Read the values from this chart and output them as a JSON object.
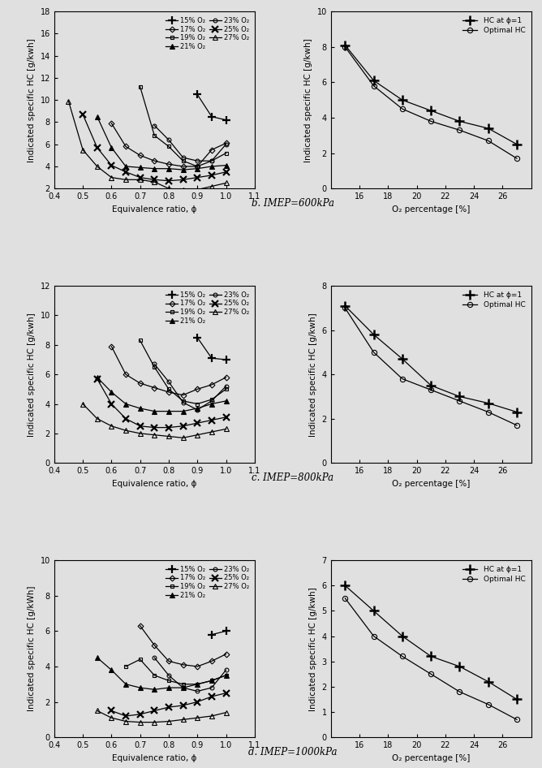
{
  "panels": [
    {
      "label": "b. IMEP=600kPa",
      "left": {
        "xlim": [
          0.4,
          1.1
        ],
        "ylim": [
          2,
          18
        ],
        "yticks": [
          2,
          4,
          6,
          8,
          10,
          12,
          14,
          16,
          18
        ],
        "xticks": [
          0.4,
          0.5,
          0.6,
          0.7,
          0.8,
          0.9,
          1.0,
          1.1
        ],
        "xlabel": "Equivalence ratio, ϕ",
        "ylabel": "Indicated specific HC [g/kwh]",
        "series": [
          {
            "label": "15% O₂",
            "x": [
              0.9,
              0.95,
              1.0
            ],
            "y": [
              10.5,
              8.5,
              8.2
            ]
          },
          {
            "label": "17% O₂",
            "x": [
              0.6,
              0.65,
              0.7,
              0.75,
              0.8,
              0.85,
              0.9,
              0.95,
              1.0
            ],
            "y": [
              7.9,
              5.8,
              5.0,
              4.5,
              4.2,
              4.0,
              4.0,
              5.5,
              6.1
            ]
          },
          {
            "label": "19% O₂",
            "x": [
              0.7,
              0.75,
              0.8,
              0.85,
              0.9,
              0.95,
              1.0
            ],
            "y": [
              11.2,
              6.8,
              5.8,
              4.5,
              4.0,
              4.5,
              5.2
            ]
          },
          {
            "label": "21% O₂",
            "x": [
              0.55,
              0.6,
              0.65,
              0.7,
              0.75,
              0.8,
              0.85,
              0.9,
              0.95,
              1.0
            ],
            "y": [
              8.5,
              5.7,
              4.0,
              3.9,
              3.8,
              3.8,
              3.7,
              3.8,
              4.0,
              4.1
            ]
          },
          {
            "label": "23% O₂",
            "x": [
              0.75,
              0.8,
              0.85,
              0.9,
              0.95,
              1.0
            ],
            "y": [
              7.7,
              6.4,
              4.8,
              4.5,
              4.5,
              6.0
            ]
          },
          {
            "label": "25% O₂",
            "x": [
              0.5,
              0.55,
              0.6,
              0.65,
              0.7,
              0.75,
              0.8,
              0.85,
              0.9,
              0.95,
              1.0
            ],
            "y": [
              8.7,
              5.7,
              4.1,
              3.5,
              3.0,
              2.8,
              2.7,
              2.8,
              3.0,
              3.2,
              3.5
            ]
          },
          {
            "label": "27% O₂",
            "x": [
              0.45,
              0.5,
              0.55,
              0.6,
              0.65,
              0.7,
              0.75,
              0.8,
              0.85,
              0.9,
              0.95,
              1.0
            ],
            "y": [
              9.9,
              5.5,
              4.0,
              3.0,
              2.8,
              2.8,
              2.6,
              2.0,
              1.9,
              1.9,
              2.2,
              2.5
            ]
          }
        ]
      },
      "right": {
        "xlim": [
          14,
          28
        ],
        "ylim": [
          0,
          10
        ],
        "yticks": [
          0,
          2,
          4,
          6,
          8,
          10
        ],
        "xticks": [
          16,
          18,
          20,
          22,
          24,
          26
        ],
        "xlabel": "O₂ percentage [%]",
        "ylabel": "Indicated specific HC [g/kwh]",
        "series": [
          {
            "label": "HC at ϕ=1",
            "x": [
              15,
              17,
              19,
              21,
              23,
              25,
              27
            ],
            "y": [
              8.1,
              6.1,
              5.0,
              4.4,
              3.8,
              3.4,
              2.5
            ]
          },
          {
            "label": "Optimal HC",
            "x": [
              15,
              17,
              19,
              21,
              23,
              25,
              27
            ],
            "y": [
              8.0,
              5.8,
              4.5,
              3.8,
              3.3,
              2.7,
              1.7
            ]
          }
        ]
      }
    },
    {
      "label": "c. IMEP=800kPa",
      "left": {
        "xlim": [
          0.4,
          1.1
        ],
        "ylim": [
          0,
          12
        ],
        "yticks": [
          0,
          2,
          4,
          6,
          8,
          10,
          12
        ],
        "xticks": [
          0.4,
          0.5,
          0.6,
          0.7,
          0.8,
          0.9,
          1.0,
          1.1
        ],
        "xlabel": "Equivalence ratio, ϕ",
        "ylabel": "Indicated specific HC [g/kwh]",
        "series": [
          {
            "label": "15% O₂",
            "x": [
              0.9,
              0.95,
              1.0
            ],
            "y": [
              8.5,
              7.1,
              7.0
            ]
          },
          {
            "label": "17% O₂",
            "x": [
              0.6,
              0.65,
              0.7,
              0.75,
              0.8,
              0.85,
              0.9,
              0.95,
              1.0
            ],
            "y": [
              7.9,
              6.0,
              5.4,
              5.1,
              4.8,
              4.6,
              5.0,
              5.3,
              5.8
            ]
          },
          {
            "label": "19% O₂",
            "x": [
              0.7,
              0.75,
              0.8,
              0.85,
              0.9,
              0.95,
              1.0
            ],
            "y": [
              8.3,
              6.5,
              5.0,
              4.2,
              4.0,
              4.3,
              5.0
            ]
          },
          {
            "label": "21% O₂",
            "x": [
              0.55,
              0.6,
              0.65,
              0.7,
              0.75,
              0.8,
              0.85,
              0.9,
              0.95,
              1.0
            ],
            "y": [
              5.8,
              4.8,
              4.0,
              3.7,
              3.5,
              3.5,
              3.5,
              3.7,
              4.0,
              4.2
            ]
          },
          {
            "label": "23% O₂",
            "x": [
              0.75,
              0.8,
              0.85,
              0.9,
              0.95,
              1.0
            ],
            "y": [
              6.7,
              5.5,
              4.1,
              3.6,
              4.2,
              5.2
            ]
          },
          {
            "label": "25% O₂",
            "x": [
              0.55,
              0.6,
              0.65,
              0.7,
              0.75,
              0.8,
              0.85,
              0.9,
              0.95,
              1.0
            ],
            "y": [
              5.7,
              4.0,
              3.0,
              2.5,
              2.4,
              2.4,
              2.5,
              2.7,
              2.9,
              3.1
            ]
          },
          {
            "label": "27% O₂",
            "x": [
              0.5,
              0.55,
              0.6,
              0.65,
              0.7,
              0.75,
              0.8,
              0.85,
              0.9,
              0.95,
              1.0
            ],
            "y": [
              4.0,
              3.0,
              2.5,
              2.2,
              2.0,
              1.9,
              1.8,
              1.7,
              1.9,
              2.1,
              2.3
            ]
          }
        ]
      },
      "right": {
        "xlim": [
          14,
          28
        ],
        "ylim": [
          0,
          8
        ],
        "yticks": [
          0,
          2,
          4,
          6,
          8
        ],
        "xticks": [
          16,
          18,
          20,
          22,
          24,
          26
        ],
        "xlabel": "O₂ percentage [%]",
        "ylabel": "Indicated specific HC [g/kwh]",
        "series": [
          {
            "label": "HC at ϕ=1",
            "x": [
              15,
              17,
              19,
              21,
              23,
              25,
              27
            ],
            "y": [
              7.1,
              5.8,
              4.7,
              3.5,
              3.0,
              2.7,
              2.3
            ]
          },
          {
            "label": "Optimal HC",
            "x": [
              15,
              17,
              19,
              21,
              23,
              25,
              27
            ],
            "y": [
              7.0,
              5.0,
              3.8,
              3.3,
              2.8,
              2.3,
              1.7
            ]
          }
        ]
      }
    },
    {
      "label": "d. IMEP=1000kPa",
      "left": {
        "xlim": [
          0.4,
          1.1
        ],
        "ylim": [
          0,
          10
        ],
        "yticks": [
          0,
          2,
          4,
          6,
          8,
          10
        ],
        "xticks": [
          0.4,
          0.5,
          0.6,
          0.7,
          0.8,
          0.9,
          1.0,
          1.1
        ],
        "xlabel": "Equivalence ratio, ϕ",
        "ylabel": "Indicated specific HC [g/kWh]",
        "series": [
          {
            "label": "15% O₂",
            "x": [
              0.95,
              1.0
            ],
            "y": [
              5.8,
              6.0
            ]
          },
          {
            "label": "17% O₂",
            "x": [
              0.7,
              0.75,
              0.8,
              0.85,
              0.9,
              0.95,
              1.0
            ],
            "y": [
              6.3,
              5.2,
              4.3,
              4.1,
              4.0,
              4.3,
              4.7
            ]
          },
          {
            "label": "19% O₂",
            "x": [
              0.65,
              0.7,
              0.75,
              0.8,
              0.85,
              0.9,
              0.95,
              1.0
            ],
            "y": [
              4.0,
              4.4,
              3.5,
              3.2,
              3.0,
              3.0,
              3.2,
              3.5
            ]
          },
          {
            "label": "21% O₂",
            "x": [
              0.55,
              0.6,
              0.65,
              0.7,
              0.75,
              0.8,
              0.85,
              0.9,
              0.95,
              1.0
            ],
            "y": [
              4.5,
              3.8,
              3.0,
              2.8,
              2.7,
              2.8,
              2.8,
              3.0,
              3.2,
              3.5
            ]
          },
          {
            "label": "23% O₂",
            "x": [
              0.75,
              0.8,
              0.85,
              0.9,
              0.95,
              1.0
            ],
            "y": [
              4.5,
              3.5,
              2.8,
              2.6,
              2.8,
              3.8
            ]
          },
          {
            "label": "25% O₂",
            "x": [
              0.6,
              0.65,
              0.7,
              0.75,
              0.8,
              0.85,
              0.9,
              0.95,
              1.0
            ],
            "y": [
              1.5,
              1.2,
              1.3,
              1.5,
              1.7,
              1.8,
              2.0,
              2.3,
              2.5
            ]
          },
          {
            "label": "27% O₂",
            "x": [
              0.55,
              0.6,
              0.65,
              0.7,
              0.75,
              0.8,
              0.85,
              0.9,
              0.95,
              1.0
            ],
            "y": [
              1.5,
              1.1,
              0.9,
              0.85,
              0.85,
              0.9,
              1.0,
              1.1,
              1.2,
              1.4
            ]
          }
        ]
      },
      "right": {
        "xlim": [
          14,
          28
        ],
        "ylim": [
          0,
          7
        ],
        "yticks": [
          0,
          1,
          2,
          3,
          4,
          5,
          6,
          7
        ],
        "xticks": [
          16,
          18,
          20,
          22,
          24,
          26
        ],
        "xlabel": "O₂ percentage [%]",
        "ylabel": "Indicated specific HC [g/kwh]",
        "series": [
          {
            "label": "HC at ϕ=1",
            "x": [
              15,
              17,
              19,
              21,
              23,
              25,
              27
            ],
            "y": [
              6.0,
              5.0,
              4.0,
              3.2,
              2.8,
              2.2,
              1.5
            ]
          },
          {
            "label": "Optimal HC",
            "x": [
              15,
              17,
              19,
              21,
              23,
              25,
              27
            ],
            "y": [
              5.5,
              4.0,
              3.2,
              2.5,
              1.8,
              1.3,
              0.7
            ]
          }
        ]
      }
    }
  ],
  "line_width": 0.9,
  "label_font_size": 7.5,
  "tick_font_size": 7,
  "bg_color": "#e0e0e0"
}
